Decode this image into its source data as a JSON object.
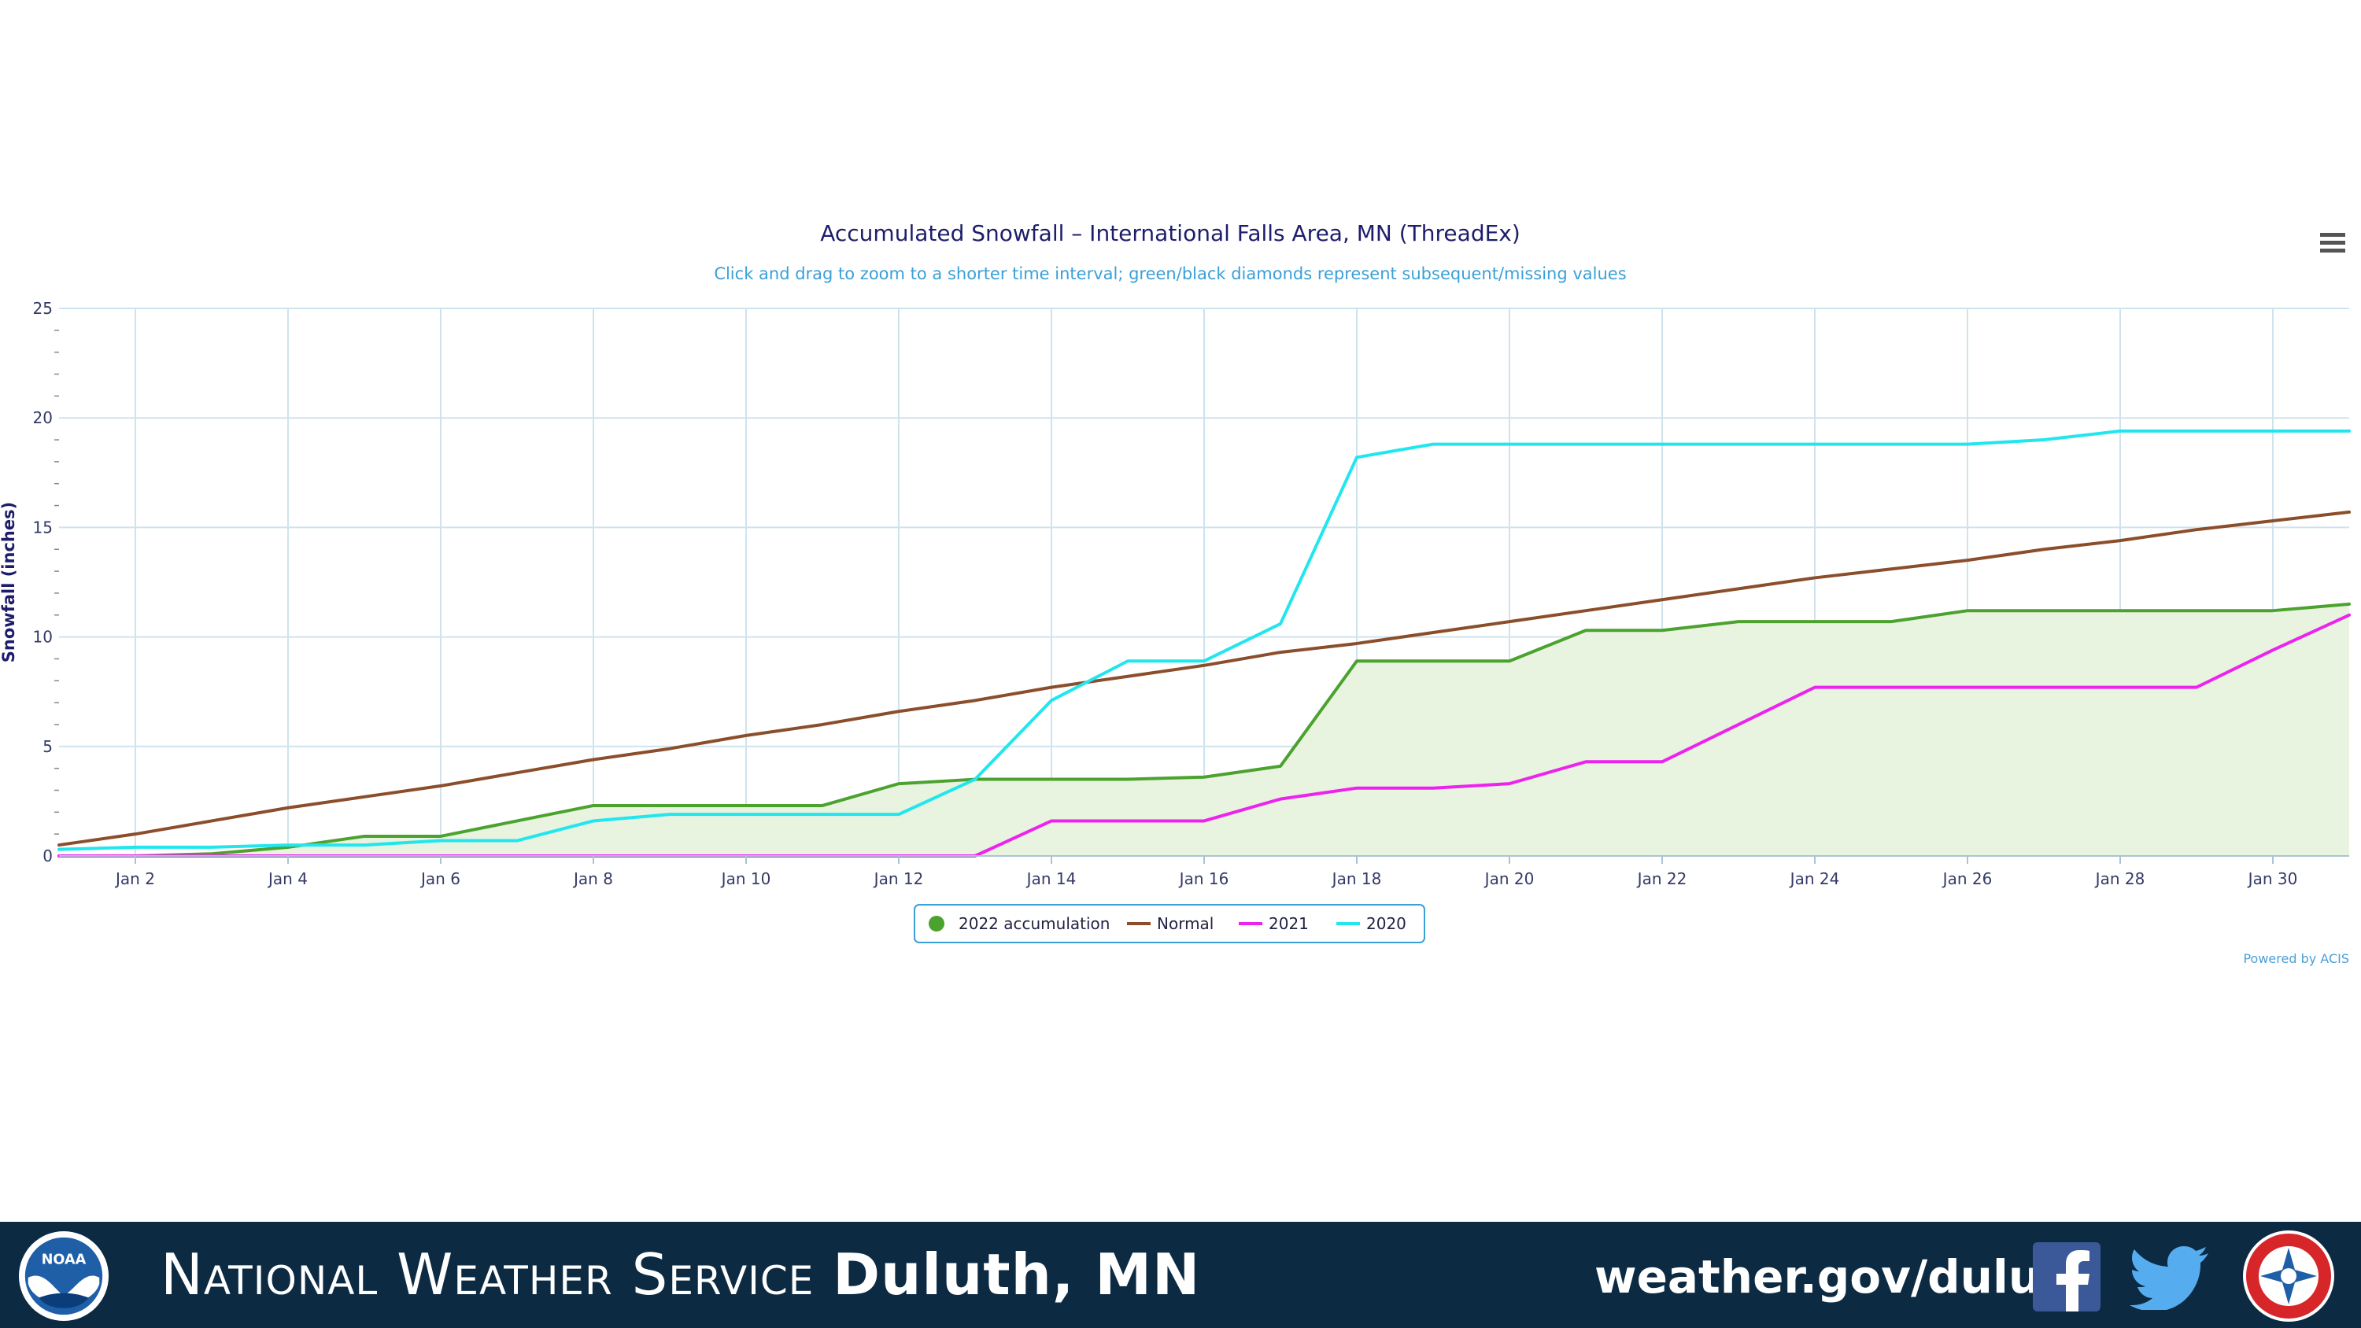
{
  "chart_data": {
    "type": "line",
    "title": "Accumulated Snowfall – International Falls Area, MN (ThreadEx)",
    "subtitle": "Click and drag to zoom to a shorter time interval; green/black diamonds represent subsequent/missing values",
    "ylabel": "Snowfall (inches)",
    "xlabel": "",
    "ylim": [
      0,
      25
    ],
    "xlim": [
      1,
      31
    ],
    "yticks": [
      0,
      5,
      10,
      15,
      20,
      25
    ],
    "xticks": [
      2,
      4,
      6,
      8,
      10,
      12,
      14,
      16,
      18,
      20,
      22,
      24,
      26,
      28,
      30
    ],
    "xtick_labels": [
      "Jan 2",
      "Jan 4",
      "Jan 6",
      "Jan 8",
      "Jan 10",
      "Jan 12",
      "Jan 14",
      "Jan 16",
      "Jan 18",
      "Jan 20",
      "Jan 22",
      "Jan 24",
      "Jan 26",
      "Jan 28",
      "Jan 30"
    ],
    "grid": true,
    "legend_position": "bottom-center",
    "credit": "Powered by ACIS",
    "x": [
      "Jan 1",
      "Jan 2",
      "Jan 3",
      "Jan 4",
      "Jan 5",
      "Jan 6",
      "Jan 7",
      "Jan 8",
      "Jan 9",
      "Jan 10",
      "Jan 11",
      "Jan 12",
      "Jan 13",
      "Jan 14",
      "Jan 15",
      "Jan 16",
      "Jan 17",
      "Jan 18",
      "Jan 19",
      "Jan 20",
      "Jan 21",
      "Jan 22",
      "Jan 23",
      "Jan 24",
      "Jan 25",
      "Jan 26",
      "Jan 27",
      "Jan 28",
      "Jan 29",
      "Jan 30",
      "Jan 31"
    ],
    "series": [
      {
        "name": "2022 accumulation",
        "color": "#4ca22e",
        "fill": "#e8f3e0",
        "marker": "circle",
        "values": [
          0.0,
          0.0,
          0.1,
          0.4,
          0.9,
          0.9,
          1.6,
          2.3,
          2.3,
          2.3,
          2.3,
          3.3,
          3.5,
          3.5,
          3.5,
          3.6,
          4.1,
          8.9,
          8.9,
          8.9,
          10.3,
          10.3,
          10.7,
          10.7,
          10.7,
          11.2,
          11.2,
          11.2,
          11.2,
          11.2,
          11.5
        ]
      },
      {
        "name": "Normal",
        "color": "#8b4e2b",
        "values": [
          0.5,
          1.0,
          1.6,
          2.2,
          2.7,
          3.2,
          3.8,
          4.4,
          4.9,
          5.5,
          6.0,
          6.6,
          7.1,
          7.7,
          8.2,
          8.7,
          9.3,
          9.7,
          10.2,
          10.7,
          11.2,
          11.7,
          12.2,
          12.7,
          13.1,
          13.5,
          14.0,
          14.4,
          14.9,
          15.3,
          15.7
        ]
      },
      {
        "name": "2021",
        "color": "#ee22ee",
        "values": [
          0.0,
          0.0,
          0.0,
          0.0,
          0.0,
          0.0,
          0.0,
          0.0,
          0.0,
          0.0,
          0.0,
          0.0,
          0.0,
          1.6,
          1.6,
          1.6,
          2.6,
          3.1,
          3.1,
          3.3,
          4.3,
          4.3,
          6.0,
          7.7,
          7.7,
          7.7,
          7.7,
          7.7,
          7.7,
          9.4,
          11.0
        ]
      },
      {
        "name": "2020",
        "color": "#22e6ee",
        "values": [
          0.3,
          0.4,
          0.4,
          0.5,
          0.5,
          0.7,
          0.7,
          1.6,
          1.9,
          1.9,
          1.9,
          1.9,
          3.5,
          7.1,
          8.9,
          8.9,
          10.6,
          18.2,
          18.8,
          18.8,
          18.8,
          18.8,
          18.8,
          18.8,
          18.8,
          18.8,
          19.0,
          19.4,
          19.4,
          19.4,
          19.4
        ]
      }
    ]
  },
  "footer": {
    "agency": "National Weather Service",
    "office": "Duluth, MN",
    "website": "weather.gov/duluth",
    "noaa_logo_text": "NOAA",
    "icons": [
      "noaa-logo-icon",
      "menu-icon",
      "facebook-icon",
      "twitter-icon",
      "nws-logo-icon"
    ],
    "background_color": "#0d2a43"
  }
}
